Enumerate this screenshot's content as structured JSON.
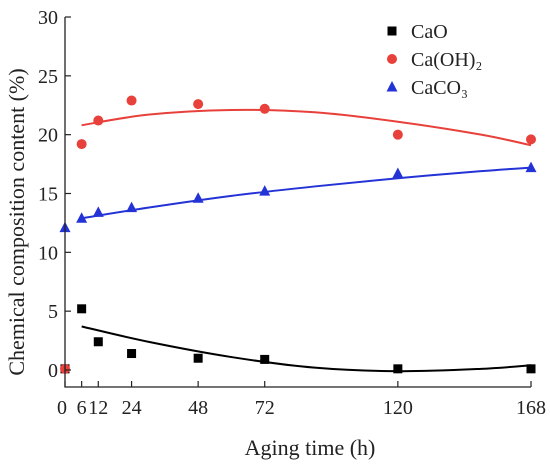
{
  "chart_data": {
    "type": "scatter",
    "title": "",
    "xlabel": "Aging time (h)",
    "ylabel": "Chemical composition content (%)",
    "xlim": [
      0,
      168
    ],
    "ylim": [
      0,
      30
    ],
    "x_ticks": [
      0,
      6,
      12,
      24,
      48,
      72,
      120,
      168
    ],
    "x_tick_labels": [
      "0",
      "6",
      "12",
      "24",
      "48",
      "72",
      "120",
      "168"
    ],
    "y_ticks": [
      0,
      5,
      10,
      15,
      20,
      25,
      30
    ],
    "y_tick_labels": [
      "0",
      "5",
      "10",
      "15",
      "20",
      "25",
      "30"
    ],
    "legend_position": "top-right",
    "grid": false,
    "series": [
      {
        "name": "CaO",
        "marker": "square",
        "color": "#000000",
        "x": [
          0,
          6,
          12,
          24,
          48,
          72,
          120,
          168
        ],
        "values": [
          0.1,
          5.2,
          2.4,
          1.4,
          1.0,
          0.9,
          0.1,
          0.1
        ],
        "fit_x": [
          6,
          30,
          60,
          90,
          120,
          150,
          168
        ],
        "fit_values": [
          3.7,
          2.4,
          1.1,
          0.2,
          -0.1,
          0.1,
          0.4
        ]
      },
      {
        "name": "Ca(OH)₂",
        "marker": "circle",
        "color": "#e8403a",
        "x": [
          0,
          6,
          12,
          24,
          48,
          72,
          120,
          168
        ],
        "values": [
          0.1,
          19.2,
          21.2,
          22.9,
          22.6,
          22.2,
          20.0,
          19.6
        ],
        "fit_x": [
          6,
          30,
          60,
          90,
          120,
          150,
          168
        ],
        "fit_values": [
          20.8,
          21.7,
          22.1,
          21.9,
          21.1,
          20.0,
          19.1
        ]
      },
      {
        "name": "CaCO₃",
        "marker": "triangle",
        "color": "#2433d6",
        "x": [
          0,
          6,
          12,
          24,
          48,
          72,
          120,
          168
        ],
        "values": [
          12.1,
          12.9,
          13.4,
          13.8,
          14.6,
          15.2,
          16.7,
          17.2
        ],
        "fit_x": [
          6,
          30,
          60,
          90,
          120,
          150,
          168
        ],
        "fit_values": [
          12.9,
          13.8,
          14.8,
          15.6,
          16.3,
          16.9,
          17.2
        ]
      }
    ]
  }
}
